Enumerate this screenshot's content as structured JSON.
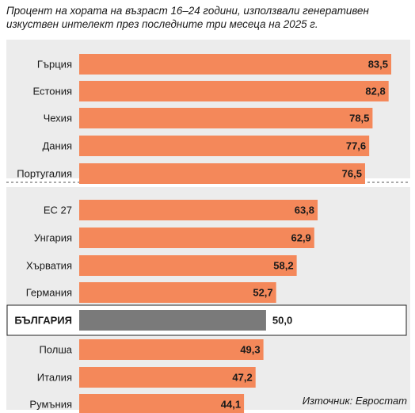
{
  "chart_data": {
    "type": "bar",
    "orientation": "horizontal",
    "title": "Процент на хората на възраст 16–24 години, използвали генеративен изкуствен интелект през последните три месеца на 2025 г.",
    "categories": [
      "Гърция",
      "Естония",
      "Чехия",
      "Дания",
      "Португалия",
      "ЕС 27",
      "Унгария",
      "Хърватия",
      "Германия",
      "БЪЛГАРИЯ",
      "Полша",
      "Италия",
      "Румъния"
    ],
    "values": [
      83.5,
      82.8,
      78.5,
      77.6,
      76.5,
      63.8,
      62.9,
      58.2,
      52.7,
      50.0,
      49.3,
      47.2,
      44.1
    ],
    "value_labels": [
      "83,5",
      "82,8",
      "78,5",
      "77,6",
      "76,5",
      "63,8",
      "62,9",
      "58,2",
      "52,7",
      "50,0",
      "49,3",
      "47,2",
      "44,1"
    ],
    "highlight": "БЪЛГАРИЯ",
    "separator_after": "Португалия",
    "xlim": [
      0,
      100
    ],
    "grid": false,
    "source": "Източник: Евростат",
    "colors": {
      "bar": "#f4885a",
      "highlight_bar": "#7a7a7a",
      "highlight_border": "#222222",
      "panel": "#ececec",
      "separator": "#555555"
    }
  }
}
